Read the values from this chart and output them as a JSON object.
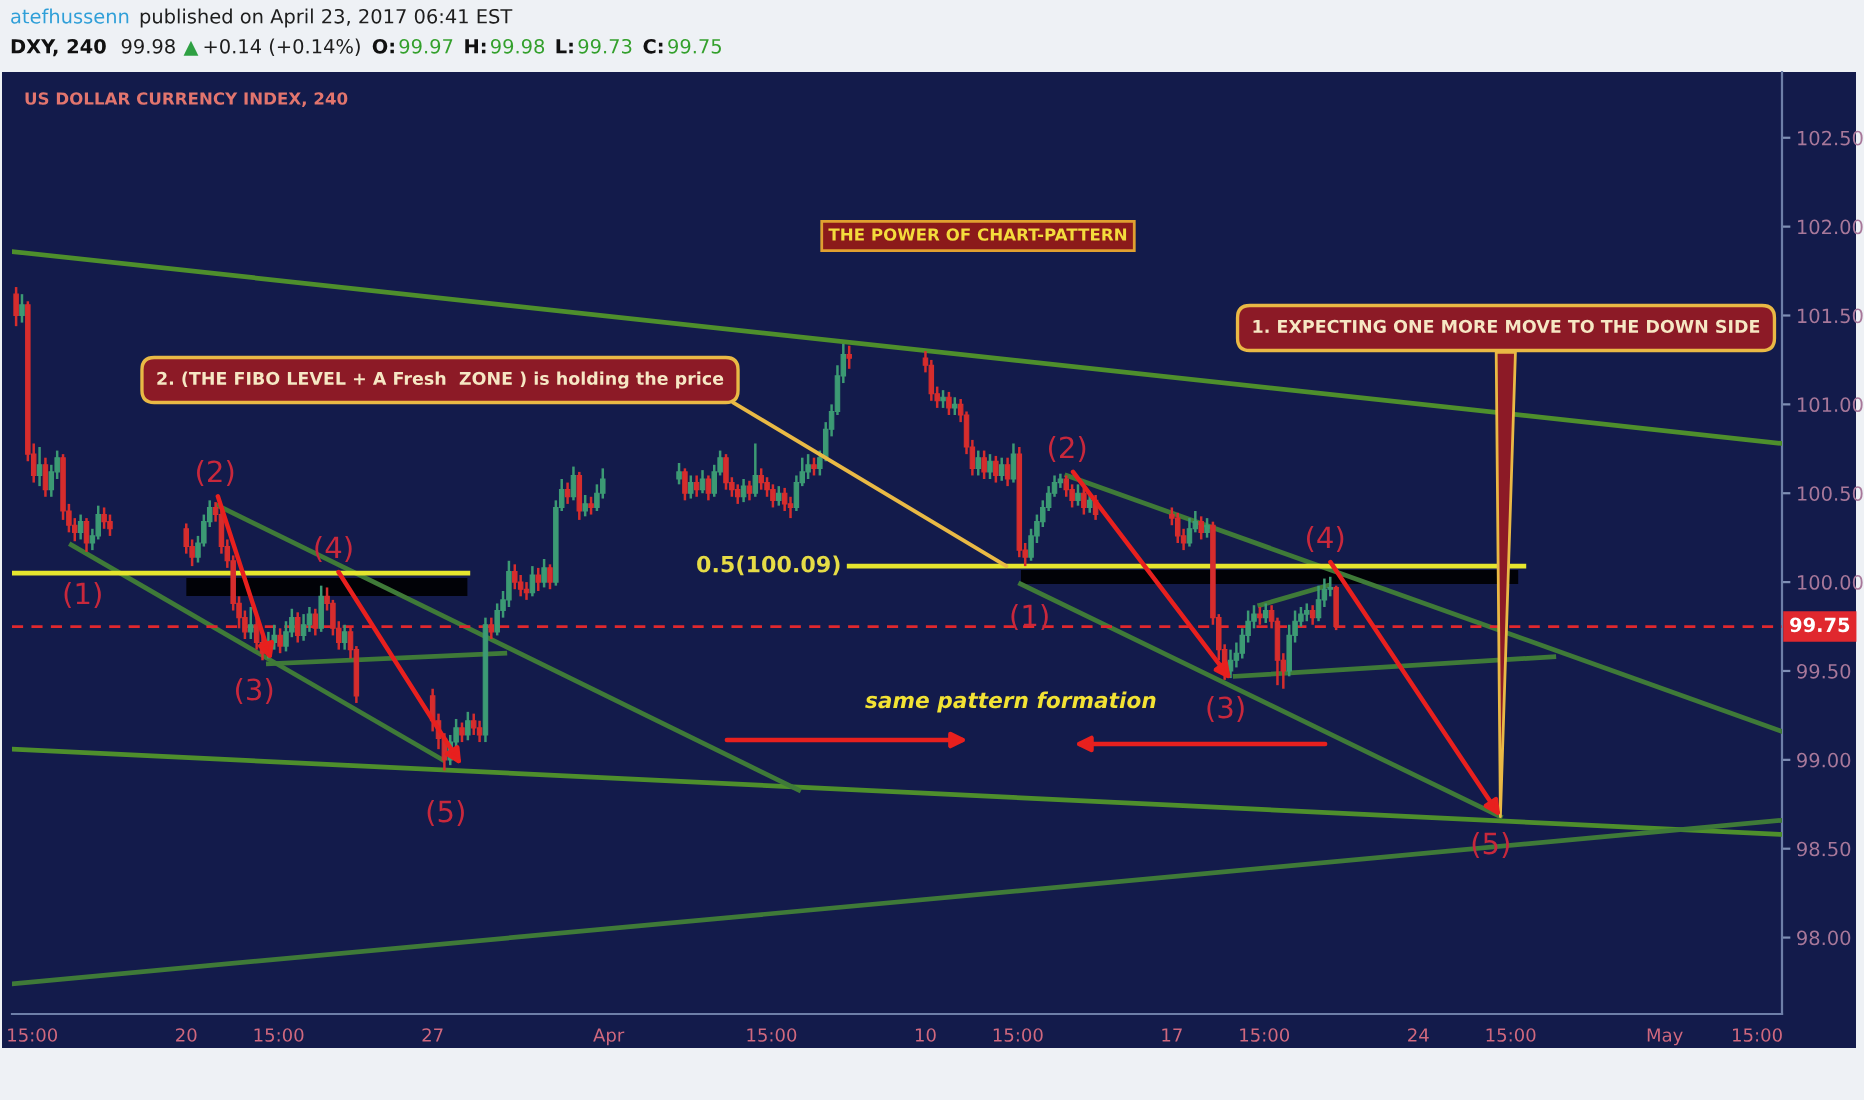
{
  "chart_data": {
    "type": "candlestick",
    "title": "US DOLLAR CURRENCY INDEX, 240",
    "subtitle": "THE POWER OF CHART-PATTERN",
    "x": [
      "2017-03-15T04:00",
      "2017-03-15T08:00",
      "2017-03-15T12:00",
      "2017-03-15T16:00",
      "2017-03-15T20:00",
      "2017-03-16T00:00",
      "2017-03-16T04:00",
      "2017-03-16T08:00",
      "2017-03-16T12:00",
      "2017-03-16T16:00",
      "2017-03-16T20:00",
      "2017-03-17T00:00",
      "2017-03-17T04:00",
      "2017-03-17T08:00",
      "2017-03-17T12:00",
      "2017-03-17T16:00",
      "2017-03-17T20:00",
      "2017-03-20T00:00",
      "2017-03-20T04:00",
      "2017-03-20T08:00",
      "2017-03-20T12:00",
      "2017-03-20T16:00",
      "2017-03-20T20:00",
      "2017-03-21T00:00",
      "2017-03-21T04:00",
      "2017-03-21T08:00",
      "2017-03-21T12:00",
      "2017-03-21T16:00",
      "2017-03-21T20:00",
      "2017-03-22T00:00",
      "2017-03-22T04:00",
      "2017-03-22T08:00",
      "2017-03-22T12:00",
      "2017-03-22T16:00",
      "2017-03-22T20:00",
      "2017-03-23T00:00",
      "2017-03-23T04:00",
      "2017-03-23T08:00",
      "2017-03-23T12:00",
      "2017-03-23T16:00",
      "2017-03-23T20:00",
      "2017-03-24T00:00",
      "2017-03-24T04:00",
      "2017-03-24T08:00",
      "2017-03-24T12:00",
      "2017-03-24T16:00",
      "2017-03-24T20:00",
      "2017-03-27T00:00",
      "2017-03-27T04:00",
      "2017-03-27T08:00",
      "2017-03-27T12:00",
      "2017-03-27T16:00",
      "2017-03-27T20:00",
      "2017-03-28T00:00",
      "2017-03-28T04:00",
      "2017-03-28T08:00",
      "2017-03-28T12:00",
      "2017-03-28T16:00",
      "2017-03-28T20:00",
      "2017-03-29T00:00",
      "2017-03-29T04:00",
      "2017-03-29T08:00",
      "2017-03-29T12:00",
      "2017-03-29T16:00",
      "2017-03-29T20:00",
      "2017-03-30T00:00",
      "2017-03-30T04:00",
      "2017-03-30T08:00",
      "2017-03-30T12:00",
      "2017-03-30T16:00",
      "2017-03-30T20:00",
      "2017-03-31T00:00",
      "2017-03-31T04:00",
      "2017-03-31T08:00",
      "2017-03-31T12:00",
      "2017-03-31T16:00",
      "2017-03-31T20:00",
      "2017-04-03T00:00",
      "2017-04-03T04:00",
      "2017-04-03T08:00",
      "2017-04-03T12:00",
      "2017-04-03T16:00",
      "2017-04-03T20:00",
      "2017-04-04T00:00",
      "2017-04-04T04:00",
      "2017-04-04T08:00",
      "2017-04-04T12:00",
      "2017-04-04T16:00",
      "2017-04-04T20:00",
      "2017-04-05T00:00",
      "2017-04-05T04:00",
      "2017-04-05T08:00",
      "2017-04-05T12:00",
      "2017-04-05T16:00",
      "2017-04-05T20:00",
      "2017-04-06T00:00",
      "2017-04-06T04:00",
      "2017-04-06T08:00",
      "2017-04-06T12:00",
      "2017-04-06T16:00",
      "2017-04-06T20:00",
      "2017-04-07T00:00",
      "2017-04-07T04:00",
      "2017-04-07T08:00",
      "2017-04-07T12:00",
      "2017-04-07T16:00",
      "2017-04-07T20:00",
      "2017-04-10T00:00",
      "2017-04-10T04:00",
      "2017-04-10T08:00",
      "2017-04-10T12:00",
      "2017-04-10T16:00",
      "2017-04-10T20:00",
      "2017-04-11T00:00",
      "2017-04-11T04:00",
      "2017-04-11T08:00",
      "2017-04-11T12:00",
      "2017-04-11T16:00",
      "2017-04-11T20:00",
      "2017-04-12T00:00",
      "2017-04-12T04:00",
      "2017-04-12T08:00",
      "2017-04-12T12:00",
      "2017-04-12T16:00",
      "2017-04-12T20:00",
      "2017-04-13T00:00",
      "2017-04-13T04:00",
      "2017-04-13T08:00",
      "2017-04-13T12:00",
      "2017-04-13T16:00",
      "2017-04-13T20:00",
      "2017-04-14T00:00",
      "2017-04-14T04:00",
      "2017-04-14T08:00",
      "2017-04-14T12:00",
      "2017-04-14T16:00",
      "2017-04-14T20:00",
      "2017-04-17T00:00",
      "2017-04-17T04:00",
      "2017-04-17T08:00",
      "2017-04-17T12:00",
      "2017-04-17T16:00",
      "2017-04-17T20:00",
      "2017-04-18T00:00",
      "2017-04-18T04:00",
      "2017-04-18T08:00",
      "2017-04-18T12:00",
      "2017-04-18T16:00",
      "2017-04-18T20:00",
      "2017-04-19T00:00",
      "2017-04-19T04:00",
      "2017-04-19T08:00",
      "2017-04-19T12:00",
      "2017-04-19T16:00",
      "2017-04-19T20:00",
      "2017-04-20T00:00",
      "2017-04-20T04:00",
      "2017-04-20T08:00",
      "2017-04-20T12:00",
      "2017-04-20T16:00",
      "2017-04-20T20:00",
      "2017-04-21T00:00",
      "2017-04-21T04:00",
      "2017-04-21T08:00",
      "2017-04-21T12:00",
      "2017-04-21T16:00"
    ],
    "ohlc": [
      [
        101.62,
        101.66,
        101.44,
        101.5
      ],
      [
        101.5,
        101.62,
        101.46,
        101.56
      ],
      [
        101.56,
        101.58,
        100.68,
        100.72
      ],
      [
        100.72,
        100.78,
        100.56,
        100.6
      ],
      [
        100.6,
        100.76,
        100.54,
        100.66
      ],
      [
        100.66,
        100.7,
        100.48,
        100.52
      ],
      [
        100.52,
        100.66,
        100.48,
        100.62
      ],
      [
        100.62,
        100.74,
        100.58,
        100.7
      ],
      [
        100.7,
        100.72,
        100.35,
        100.4
      ],
      [
        100.4,
        100.44,
        100.28,
        100.32
      ],
      [
        100.32,
        100.36,
        100.23,
        100.28
      ],
      [
        100.28,
        100.38,
        100.24,
        100.34
      ],
      [
        100.34,
        100.36,
        100.17,
        100.22
      ],
      [
        100.22,
        100.3,
        100.18,
        100.26
      ],
      [
        100.26,
        100.43,
        100.24,
        100.38
      ],
      [
        100.38,
        100.42,
        100.3,
        100.34
      ],
      [
        100.34,
        100.38,
        100.26,
        100.3
      ],
      [
        100.3,
        100.33,
        100.16,
        100.2
      ],
      [
        100.2,
        100.24,
        100.09,
        100.14
      ],
      [
        100.14,
        100.26,
        100.11,
        100.22
      ],
      [
        100.22,
        100.38,
        100.2,
        100.34
      ],
      [
        100.34,
        100.46,
        100.31,
        100.42
      ],
      [
        100.42,
        100.45,
        100.34,
        100.38
      ],
      [
        100.38,
        100.41,
        100.16,
        100.2
      ],
      [
        100.2,
        100.24,
        100.08,
        100.12
      ],
      [
        100.12,
        100.15,
        99.84,
        99.88
      ],
      [
        99.88,
        99.92,
        99.74,
        99.8
      ],
      [
        99.8,
        99.84,
        99.68,
        99.72
      ],
      [
        99.72,
        99.86,
        99.68,
        99.76
      ],
      [
        99.76,
        99.8,
        99.62,
        99.66
      ],
      [
        99.66,
        99.7,
        99.56,
        99.6
      ],
      [
        99.6,
        99.72,
        99.57,
        99.66
      ],
      [
        99.66,
        99.76,
        99.62,
        99.7
      ],
      [
        99.7,
        99.74,
        99.6,
        99.64
      ],
      [
        99.64,
        99.78,
        99.61,
        99.72
      ],
      [
        99.72,
        99.85,
        99.69,
        99.8
      ],
      [
        99.8,
        99.83,
        99.66,
        99.7
      ],
      [
        99.7,
        99.82,
        99.67,
        99.76
      ],
      [
        99.76,
        99.86,
        99.72,
        99.82
      ],
      [
        99.82,
        99.85,
        99.7,
        99.74
      ],
      [
        99.74,
        99.98,
        99.72,
        99.92
      ],
      [
        99.92,
        99.97,
        99.84,
        99.88
      ],
      [
        99.88,
        99.9,
        99.7,
        99.74
      ],
      [
        99.74,
        99.78,
        99.62,
        99.66
      ],
      [
        99.66,
        99.76,
        99.62,
        99.72
      ],
      [
        99.72,
        99.75,
        99.57,
        99.62
      ],
      [
        99.62,
        99.64,
        99.32,
        99.36
      ],
      [
        99.36,
        99.4,
        99.16,
        99.22
      ],
      [
        99.22,
        99.26,
        99.06,
        99.12
      ],
      [
        99.12,
        99.15,
        98.94,
        99.0
      ],
      [
        99.0,
        99.14,
        98.97,
        99.1
      ],
      [
        99.1,
        99.23,
        99.07,
        99.18
      ],
      [
        99.18,
        99.21,
        99.1,
        99.14
      ],
      [
        99.14,
        99.27,
        99.11,
        99.22
      ],
      [
        99.22,
        99.26,
        99.14,
        99.18
      ],
      [
        99.18,
        99.22,
        99.1,
        99.14
      ],
      [
        99.14,
        99.8,
        99.1,
        99.76
      ],
      [
        99.76,
        99.8,
        99.68,
        99.72
      ],
      [
        99.72,
        99.88,
        99.7,
        99.84
      ],
      [
        99.84,
        99.95,
        99.8,
        99.9
      ],
      [
        99.9,
        100.12,
        99.86,
        100.06
      ],
      [
        100.06,
        100.1,
        99.96,
        100.0
      ],
      [
        100.0,
        100.04,
        99.92,
        99.96
      ],
      [
        99.96,
        100.0,
        99.9,
        99.94
      ],
      [
        99.94,
        100.09,
        99.92,
        100.04
      ],
      [
        100.04,
        100.08,
        99.95,
        100.0
      ],
      [
        100.0,
        100.13,
        99.97,
        100.08
      ],
      [
        100.08,
        100.1,
        99.96,
        100.0
      ],
      [
        100.0,
        100.46,
        99.98,
        100.42
      ],
      [
        100.42,
        100.58,
        100.4,
        100.52
      ],
      [
        100.52,
        100.56,
        100.44,
        100.48
      ],
      [
        100.48,
        100.65,
        100.46,
        100.6
      ],
      [
        100.6,
        100.62,
        100.35,
        100.4
      ],
      [
        100.4,
        100.49,
        100.37,
        100.44
      ],
      [
        100.44,
        100.48,
        100.38,
        100.42
      ],
      [
        100.42,
        100.55,
        100.4,
        100.5
      ],
      [
        100.5,
        100.64,
        100.47,
        100.58
      ],
      [
        100.58,
        100.67,
        100.55,
        100.62
      ],
      [
        100.62,
        100.64,
        100.46,
        100.5
      ],
      [
        100.5,
        100.6,
        100.47,
        100.56
      ],
      [
        100.56,
        100.6,
        100.48,
        100.52
      ],
      [
        100.52,
        100.63,
        100.5,
        100.58
      ],
      [
        100.58,
        100.6,
        100.46,
        100.5
      ],
      [
        100.5,
        100.66,
        100.48,
        100.62
      ],
      [
        100.62,
        100.74,
        100.6,
        100.7
      ],
      [
        100.7,
        100.72,
        100.52,
        100.56
      ],
      [
        100.56,
        100.59,
        100.48,
        100.52
      ],
      [
        100.52,
        100.55,
        100.44,
        100.48
      ],
      [
        100.48,
        100.58,
        100.45,
        100.54
      ],
      [
        100.54,
        100.57,
        100.46,
        100.5
      ],
      [
        100.5,
        100.78,
        100.48,
        100.6
      ],
      [
        100.6,
        100.64,
        100.52,
        100.56
      ],
      [
        100.56,
        100.59,
        100.48,
        100.52
      ],
      [
        100.52,
        100.55,
        100.42,
        100.46
      ],
      [
        100.46,
        100.54,
        100.43,
        100.5
      ],
      [
        100.5,
        100.53,
        100.4,
        100.44
      ],
      [
        100.44,
        100.48,
        100.36,
        100.42
      ],
      [
        100.42,
        100.6,
        100.4,
        100.56
      ],
      [
        100.56,
        100.7,
        100.54,
        100.62
      ],
      [
        100.62,
        100.72,
        100.58,
        100.66
      ],
      [
        100.66,
        100.7,
        100.6,
        100.64
      ],
      [
        100.64,
        100.74,
        100.6,
        100.7
      ],
      [
        100.7,
        100.9,
        100.68,
        100.86
      ],
      [
        100.86,
        101.0,
        100.82,
        100.96
      ],
      [
        100.96,
        101.22,
        100.94,
        101.16
      ],
      [
        101.16,
        101.34,
        101.12,
        101.28
      ],
      [
        101.28,
        101.33,
        101.2,
        101.26
      ],
      [
        101.26,
        101.3,
        101.18,
        101.22
      ],
      [
        101.22,
        101.25,
        101.02,
        101.06
      ],
      [
        101.06,
        101.1,
        100.98,
        101.02
      ],
      [
        101.02,
        101.08,
        100.98,
        101.04
      ],
      [
        101.04,
        101.07,
        100.94,
        100.98
      ],
      [
        100.98,
        101.04,
        100.94,
        101.0
      ],
      [
        101.0,
        101.03,
        100.9,
        100.94
      ],
      [
        100.94,
        100.96,
        100.72,
        100.76
      ],
      [
        100.76,
        100.8,
        100.6,
        100.64
      ],
      [
        100.64,
        100.74,
        100.6,
        100.7
      ],
      [
        100.7,
        100.74,
        100.58,
        100.62
      ],
      [
        100.62,
        100.72,
        100.58,
        100.68
      ],
      [
        100.68,
        100.71,
        100.56,
        100.6
      ],
      [
        100.6,
        100.7,
        100.57,
        100.66
      ],
      [
        100.66,
        100.7,
        100.54,
        100.58
      ],
      [
        100.58,
        100.78,
        100.56,
        100.72
      ],
      [
        100.72,
        100.76,
        100.14,
        100.18
      ],
      [
        100.18,
        100.22,
        100.09,
        100.14
      ],
      [
        100.14,
        100.3,
        100.12,
        100.26
      ],
      [
        100.26,
        100.38,
        100.22,
        100.34
      ],
      [
        100.34,
        100.46,
        100.31,
        100.42
      ],
      [
        100.42,
        100.54,
        100.4,
        100.5
      ],
      [
        100.5,
        100.6,
        100.48,
        100.56
      ],
      [
        100.56,
        100.61,
        100.53,
        100.58
      ],
      [
        100.58,
        100.6,
        100.48,
        100.52
      ],
      [
        100.52,
        100.55,
        100.42,
        100.46
      ],
      [
        100.46,
        100.55,
        100.43,
        100.5
      ],
      [
        100.5,
        100.53,
        100.38,
        100.42
      ],
      [
        100.42,
        100.5,
        100.39,
        100.46
      ],
      [
        100.46,
        100.49,
        100.35,
        100.38
      ],
      [
        100.38,
        100.42,
        100.32,
        100.36
      ],
      [
        100.36,
        100.39,
        100.22,
        100.26
      ],
      [
        100.26,
        100.3,
        100.18,
        100.22
      ],
      [
        100.22,
        100.36,
        100.2,
        100.3
      ],
      [
        100.3,
        100.4,
        100.28,
        100.34
      ],
      [
        100.34,
        100.37,
        100.24,
        100.28
      ],
      [
        100.28,
        100.36,
        100.25,
        100.32
      ],
      [
        100.32,
        100.34,
        99.76,
        99.8
      ],
      [
        99.8,
        99.82,
        99.56,
        99.62
      ],
      [
        99.62,
        99.65,
        99.45,
        99.5
      ],
      [
        99.5,
        99.62,
        99.46,
        99.56
      ],
      [
        99.56,
        99.66,
        99.52,
        99.6
      ],
      [
        99.6,
        99.74,
        99.57,
        99.7
      ],
      [
        99.7,
        99.84,
        99.66,
        99.78
      ],
      [
        99.78,
        99.87,
        99.74,
        99.82
      ],
      [
        99.82,
        99.86,
        99.76,
        99.8
      ],
      [
        99.8,
        99.88,
        99.77,
        99.84
      ],
      [
        99.84,
        99.87,
        99.74,
        99.78
      ],
      [
        99.78,
        99.8,
        99.42,
        99.56
      ],
      [
        99.56,
        99.6,
        99.4,
        99.5
      ],
      [
        99.5,
        99.76,
        99.47,
        99.7
      ],
      [
        99.7,
        99.84,
        99.66,
        99.78
      ],
      [
        99.78,
        99.86,
        99.75,
        99.82
      ],
      [
        99.82,
        99.88,
        99.78,
        99.84
      ],
      [
        99.84,
        99.87,
        99.76,
        99.8
      ],
      [
        99.8,
        99.98,
        99.78,
        99.9
      ],
      [
        99.9,
        100.02,
        99.86,
        99.96
      ],
      [
        99.96,
        100.03,
        99.92,
        99.97
      ],
      [
        99.97,
        99.98,
        99.73,
        99.75
      ]
    ],
    "colors": [
      "#d62d2d",
      "#3c9a74",
      "#d62d2d",
      "#d62d2d",
      "#3c9a74",
      "#d62d2d",
      "#3c9a74",
      "#3c9a74",
      "#d62d2d",
      "#d62d2d",
      "#d62d2d",
      "#3c9a74",
      "#d62d2d",
      "#3c9a74",
      "#3c9a74",
      "#d62d2d",
      "#d62d2d",
      "#d62d2d",
      "#d62d2d",
      "#3c9a74",
      "#3c9a74",
      "#3c9a74",
      "#d62d2d",
      "#d62d2d",
      "#d62d2d",
      "#d62d2d",
      "#d62d2d",
      "#d62d2d",
      "#3c9a74",
      "#d62d2d",
      "#d62d2d",
      "#3c9a74",
      "#3c9a74",
      "#d62d2d",
      "#3c9a74",
      "#3c9a74",
      "#d62d2d",
      "#3c9a74",
      "#3c9a74",
      "#d62d2d",
      "#3c9a74",
      "#d62d2d",
      "#d62d2d",
      "#d62d2d",
      "#3c9a74",
      "#d62d2d",
      "#d62d2d",
      "#d62d2d",
      "#d62d2d",
      "#d62d2d",
      "#3c9a74",
      "#3c9a74",
      "#d62d2d",
      "#3c9a74",
      "#d62d2d",
      "#d62d2d",
      "#3c9a74",
      "#d62d2d",
      "#3c9a74",
      "#3c9a74",
      "#3c9a74",
      "#d62d2d",
      "#d62d2d",
      "#d62d2d",
      "#3c9a74",
      "#d62d2d",
      "#3c9a74",
      "#d62d2d",
      "#3c9a74",
      "#3c9a74",
      "#d62d2d",
      "#3c9a74",
      "#d62d2d",
      "#3c9a74",
      "#d62d2d",
      "#3c9a74",
      "#3c9a74",
      "#3c9a74",
      "#d62d2d",
      "#3c9a74",
      "#d62d2d",
      "#3c9a74",
      "#d62d2d",
      "#3c9a74",
      "#3c9a74",
      "#d62d2d",
      "#d62d2d",
      "#d62d2d",
      "#3c9a74",
      "#d62d2d",
      "#3c9a74",
      "#d62d2d",
      "#d62d2d",
      "#d62d2d",
      "#3c9a74",
      "#d62d2d",
      "#d62d2d",
      "#3c9a74",
      "#3c9a74",
      "#3c9a74",
      "#d62d2d",
      "#3c9a74",
      "#3c9a74",
      "#3c9a74",
      "#3c9a74",
      "#3c9a74",
      "#d62d2d",
      "#d62d2d",
      "#d62d2d",
      "#d62d2d",
      "#3c9a74",
      "#d62d2d",
      "#3c9a74",
      "#d62d2d",
      "#d62d2d",
      "#d62d2d",
      "#3c9a74",
      "#d62d2d",
      "#3c9a74",
      "#d62d2d",
      "#3c9a74",
      "#d62d2d",
      "#3c9a74",
      "#d62d2d",
      "#d62d2d",
      "#3c9a74",
      "#3c9a74",
      "#3c9a74",
      "#3c9a74",
      "#3c9a74",
      "#3c9a74",
      "#d62d2d",
      "#d62d2d",
      "#3c9a74",
      "#d62d2d",
      "#3c9a74",
      "#d62d2d",
      "#d62d2d",
      "#d62d2d",
      "#d62d2d",
      "#3c9a74",
      "#3c9a74",
      "#d62d2d",
      "#3c9a74",
      "#d62d2d",
      "#d62d2d",
      "#d62d2d",
      "#3c9a74",
      "#3c9a74",
      "#3c9a74",
      "#3c9a74",
      "#3c9a74",
      "#d62d2d",
      "#3c9a74",
      "#d62d2d",
      "#d62d2d",
      "#d62d2d",
      "#3c9a74",
      "#3c9a74",
      "#3c9a74",
      "#3c9a74",
      "#d62d2d",
      "#3c9a74",
      "#3c9a74",
      "#3c9a74",
      "#d62d2d"
    ],
    "series": [
      {
        "type": "line",
        "x": [
          "2017-03-15T01:12",
          "2017-05-04T08:00"
        ],
        "values": [
          101.86,
          100.78
        ],
        "color": "#4e8f2c"
      },
      {
        "type": "line",
        "x": [
          "2017-03-15T01:12",
          "2017-05-04T08:00"
        ],
        "values": [
          99.06,
          98.58
        ],
        "color": "#4e8f2c"
      },
      {
        "type": "line",
        "x": [
          "2017-03-15T01:12",
          "2017-05-04T08:00"
        ],
        "values": [
          97.74,
          98.66
        ],
        "color": "#3f7a38"
      },
      {
        "type": "line",
        "x": [
          "2017-03-16T17:36",
          "2017-03-27T06:48"
        ],
        "values": [
          100.21,
          99.0
        ],
        "color": "#3f7a38"
      },
      {
        "type": "line",
        "x": [
          "2017-03-20T21:36",
          "2017-04-06T09:36"
        ],
        "values": [
          100.43,
          98.83
        ],
        "color": "#3f7a38"
      },
      {
        "type": "line",
        "x": [
          "2017-03-22T08:00",
          "2017-03-29T01:12"
        ],
        "values": [
          99.54,
          99.6
        ],
        "color": "#3f7a38"
      },
      {
        "type": "line",
        "x": [
          "2017-04-14T00:24",
          "2017-05-04T08:00"
        ],
        "values": [
          100.6,
          99.16
        ],
        "color": "#3f7a38"
      },
      {
        "type": "line",
        "x": [
          "2017-04-12T16:48",
          "2017-04-26T08:00"
        ],
        "values": [
          99.99,
          98.68
        ],
        "color": "#3f7a38"
      },
      {
        "type": "line",
        "x": [
          "2017-04-18T19:12",
          "2017-04-27T20:24"
        ],
        "values": [
          99.47,
          99.58
        ],
        "color": "#3f7a38"
      },
      {
        "type": "line",
        "x": [
          "2017-04-19T12:00",
          "2017-04-21T10:00"
        ],
        "values": [
          99.87,
          99.98
        ],
        "color": "#3f7a38"
      },
      {
        "type": "line",
        "x": [
          "2017-03-15T01:12",
          "2017-03-28T00:00"
        ],
        "values": [
          100.05,
          100.05
        ],
        "color": "#e6e62e"
      },
      {
        "type": "line",
        "x": [
          "2017-04-07T20:00",
          "2017-04-27T00:00"
        ],
        "values": [
          100.09,
          100.09
        ],
        "color": "#e6e62e"
      }
    ],
    "xlim": [
      "2017-03-15T01:12",
      "2017-05-04T08:00"
    ],
    "xticks": [
      {
        "value": "2017-03-15T15:00",
        "label": "15:00"
      },
      {
        "value": "2017-03-20",
        "label": "20"
      },
      {
        "value": "2017-03-22T15:00",
        "label": "15:00"
      },
      {
        "value": "2017-03-27",
        "label": "27"
      },
      {
        "value": "2017-04",
        "label": "Apr"
      },
      {
        "value": "2017-04-05T15:00",
        "label": "15:00"
      },
      {
        "value": "2017-04-10",
        "label": "10"
      },
      {
        "value": "2017-04-12T15:00",
        "label": "15:00"
      },
      {
        "value": "2017-04-17",
        "label": "17"
      },
      {
        "value": "2017-04-19T15:00",
        "label": "15:00"
      },
      {
        "value": "2017-04-24",
        "label": "24"
      },
      {
        "value": "2017-04-26T15:00",
        "label": "15:00"
      },
      {
        "value": "2017-05",
        "label": "May"
      },
      {
        "value": "2017-05-03T15:00",
        "label": "15:00"
      }
    ],
    "ylim": [
      97.57,
      102.87
    ],
    "yticks": [
      {
        "value": 98,
        "label": "98.00"
      },
      {
        "value": 98.5,
        "label": "98.50"
      },
      {
        "value": 99,
        "label": "99.00"
      },
      {
        "value": 99.5,
        "label": "99.50"
      },
      {
        "value": 100,
        "label": "100.00"
      },
      {
        "value": 100.5,
        "label": "100.50"
      },
      {
        "value": 101,
        "label": "101.00"
      },
      {
        "value": 101.5,
        "label": "101.50"
      },
      {
        "value": 102,
        "label": "102.00"
      },
      {
        "value": 102.5,
        "label": "102.50"
      }
    ],
    "ref_lines": [
      {
        "axis": "y",
        "value": 99.75,
        "label": "99.75",
        "color": "#e0282e",
        "line_style": "dashed"
      }
    ],
    "annotations": [
      "atefhussenn",
      "published on April 23, 2017 06:41 EST",
      "DXY, 240",
      "99.98",
      "▲",
      "+0.14 (+0.14%)",
      "O:",
      "99.97",
      "H:",
      "99.98",
      "L:",
      "99.73",
      "C:",
      "99.75",
      {
        "text": "2. (THE FIBO LEVEL + A Fresh  ZONE ) is holding the price",
        "x": "2017-04-12T07:12",
        "y": 100.09
      },
      {
        "text": "1. EXPECTING ONE MORE MOVE TO THE DOWN SIDE",
        "x": "2017-04-26T08:00",
        "y": 98.68
      },
      "same pattern formation",
      "(1)",
      {
        "text": "(2)",
        "x": "2017-03-22T10:00",
        "y": 99.56
      },
      "(3)",
      {
        "text": "(4)",
        "x": "2017-03-27T19:36",
        "y": 98.97
      },
      "(5)",
      "(1)",
      {
        "text": "(2)",
        "x": "2017-04-18T16:24",
        "y": 99.45
      },
      "(3)",
      {
        "text": "(4)",
        "x": "2017-04-26T08:00",
        "y": 98.68
      },
      "(5)",
      {
        "text": "0.5(100.09)",
        "x": "2017-04-07T20:00",
        "y": 100.09
      }
    ]
  }
}
